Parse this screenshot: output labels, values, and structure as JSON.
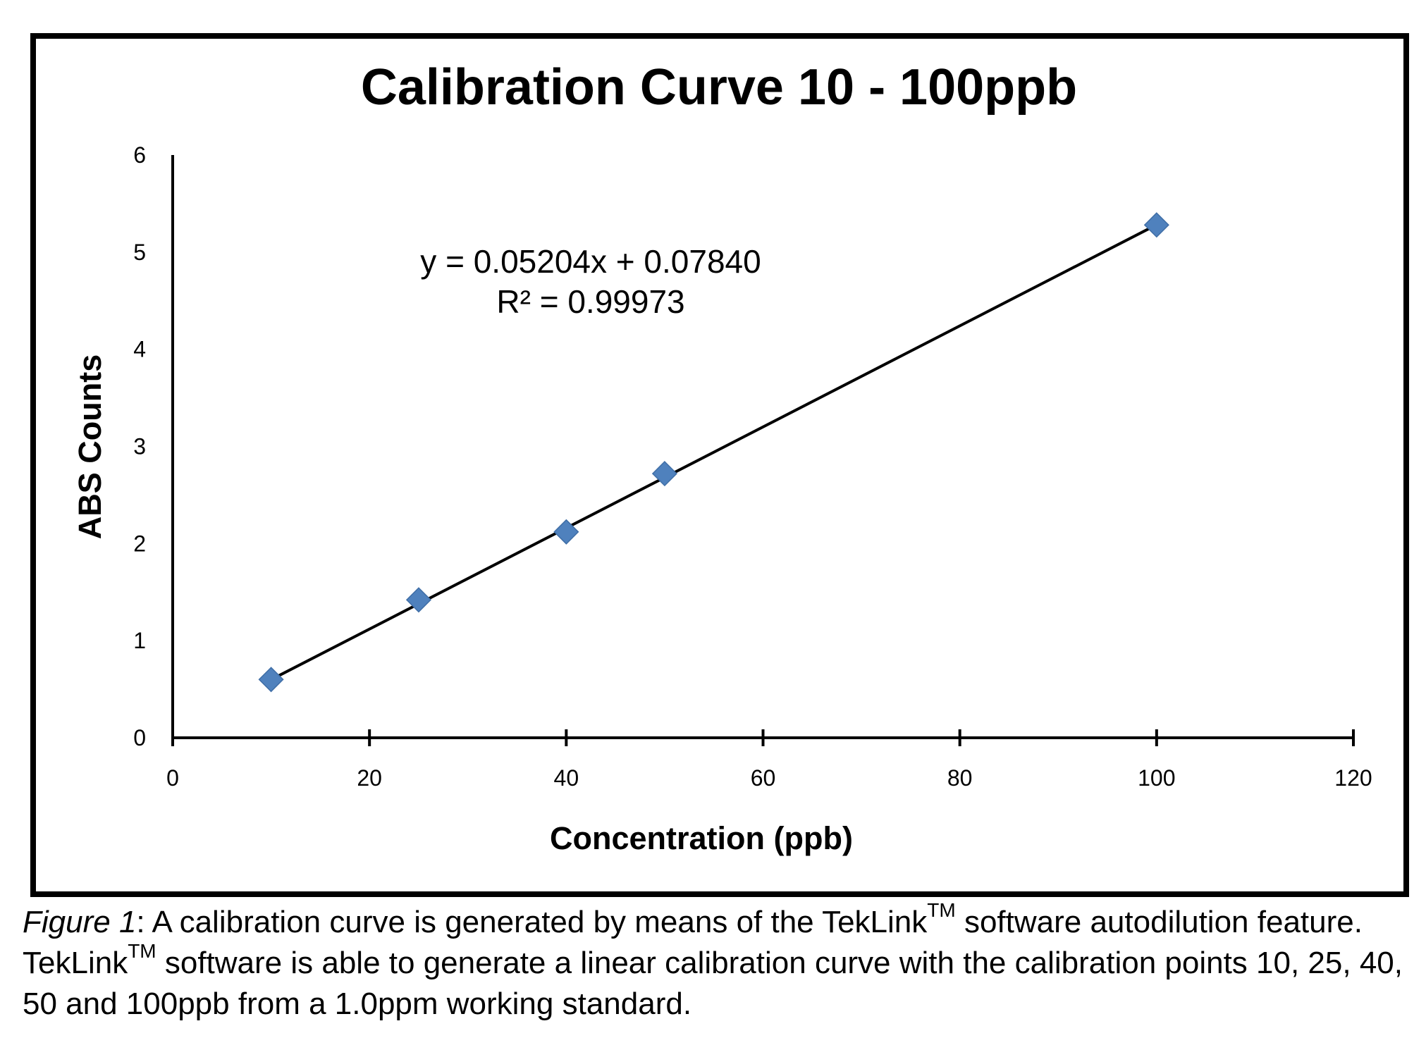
{
  "chart_data": {
    "type": "scatter",
    "title": "Calibration Curve 10 - 100ppb",
    "xlabel": "Concentration (ppb)",
    "ylabel": "ABS Counts",
    "xlim": [
      0,
      120
    ],
    "ylim": [
      0,
      6
    ],
    "x_ticks": [
      "0",
      "20",
      "40",
      "60",
      "80",
      "100",
      "120"
    ],
    "y_ticks": [
      "0",
      "1",
      "2",
      "3",
      "4",
      "5",
      "6"
    ],
    "grid": false,
    "legend": "none",
    "series": [
      {
        "x": [
          10,
          25,
          40,
          50,
          100
        ],
        "y": [
          0.6,
          1.42,
          2.12,
          2.72,
          5.28
        ],
        "color": "#4f81bd",
        "marker": "diamond"
      }
    ],
    "trendline": {
      "type": "linear",
      "slope": 0.05204,
      "intercept": 0.0784,
      "x_range": [
        10,
        100
      ],
      "color": "#000000"
    },
    "annotations": [
      "y = 0.05204x + 0.07840",
      "R² = 0.99973"
    ]
  },
  "caption": {
    "figure_label": "Figure 1",
    "segments": [
      ": A calibration curve is generated by means of the TekLink",
      " software autodilution feature. TekLink",
      " software is able to generate a linear calibration curve with the calibration points 10, 25, 40, 50 and 100ppb from a 1.0ppm working standard."
    ],
    "trademark": "TM"
  }
}
